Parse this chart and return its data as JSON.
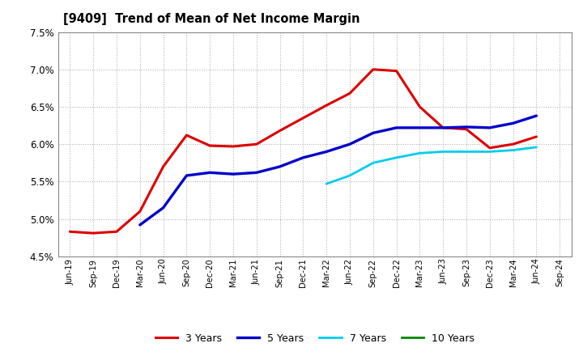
{
  "title": "[9409]  Trend of Mean of Net Income Margin",
  "background_color": "#ffffff",
  "grid_color": "#b0b0b0",
  "ylim": [
    0.045,
    0.075
  ],
  "yticks": [
    0.045,
    0.05,
    0.055,
    0.06,
    0.065,
    0.07,
    0.075
  ],
  "ytick_labels": [
    "4.5%",
    "5.0%",
    "5.5%",
    "6.0%",
    "6.5%",
    "7.0%",
    "7.5%"
  ],
  "x_labels": [
    "Jun-19",
    "Sep-19",
    "Dec-19",
    "Mar-20",
    "Jun-20",
    "Sep-20",
    "Dec-20",
    "Mar-21",
    "Jun-21",
    "Sep-21",
    "Dec-21",
    "Mar-22",
    "Jun-22",
    "Sep-22",
    "Dec-22",
    "Mar-23",
    "Jun-23",
    "Sep-23",
    "Dec-23",
    "Mar-24",
    "Jun-24",
    "Sep-24"
  ],
  "series": {
    "3 Years": {
      "color": "#dd0000",
      "values": [
        0.0483,
        0.0481,
        0.0483,
        0.051,
        0.057,
        0.0612,
        0.0598,
        0.0597,
        0.06,
        0.0618,
        0.0635,
        0.0652,
        0.0668,
        0.07,
        0.0698,
        0.065,
        0.0622,
        0.062,
        0.0595,
        0.06,
        0.061,
        null
      ],
      "linewidth": 2.2
    },
    "5 Years": {
      "color": "#0000cc",
      "values": [
        null,
        null,
        null,
        0.0492,
        0.0515,
        0.0558,
        0.0562,
        0.056,
        0.0562,
        0.057,
        0.0582,
        0.059,
        0.06,
        0.0615,
        0.0622,
        0.0622,
        0.0622,
        0.0623,
        0.0622,
        0.0628,
        0.0638,
        null
      ],
      "linewidth": 2.4
    },
    "7 Years": {
      "color": "#00ccee",
      "values": [
        null,
        null,
        null,
        null,
        null,
        null,
        null,
        null,
        null,
        null,
        null,
        0.0547,
        0.0558,
        0.0575,
        0.0582,
        0.0588,
        0.059,
        0.059,
        0.059,
        0.0592,
        0.0596,
        null
      ],
      "linewidth": 2.0
    },
    "10 Years": {
      "color": "#008800",
      "values": [
        null,
        null,
        null,
        null,
        null,
        null,
        null,
        null,
        null,
        null,
        null,
        null,
        null,
        null,
        null,
        null,
        null,
        null,
        null,
        null,
        null,
        null
      ],
      "linewidth": 2.0
    }
  },
  "legend_order": [
    "3 Years",
    "5 Years",
    "7 Years",
    "10 Years"
  ]
}
